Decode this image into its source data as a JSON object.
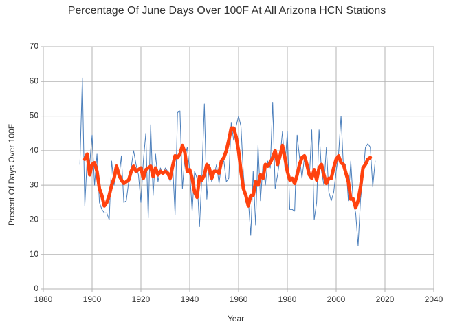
{
  "chart_data": {
    "type": "line",
    "title": "Percentage Of June Days Over 100F At All Arizona HCN Stations",
    "xlabel": "Year",
    "ylabel": "Precent Of Days Over 100F",
    "x": [
      1895,
      1896,
      1897,
      1898,
      1899,
      1900,
      1901,
      1902,
      1903,
      1904,
      1905,
      1906,
      1907,
      1908,
      1909,
      1910,
      1911,
      1912,
      1913,
      1914,
      1915,
      1916,
      1917,
      1918,
      1919,
      1920,
      1921,
      1922,
      1923,
      1924,
      1925,
      1926,
      1927,
      1928,
      1929,
      1930,
      1931,
      1932,
      1933,
      1934,
      1935,
      1936,
      1937,
      1938,
      1939,
      1940,
      1941,
      1942,
      1943,
      1944,
      1945,
      1946,
      1947,
      1948,
      1949,
      1950,
      1951,
      1952,
      1953,
      1954,
      1955,
      1956,
      1957,
      1958,
      1959,
      1960,
      1961,
      1962,
      1963,
      1964,
      1965,
      1966,
      1967,
      1968,
      1969,
      1970,
      1971,
      1972,
      1973,
      1974,
      1975,
      1976,
      1977,
      1978,
      1979,
      1980,
      1981,
      1982,
      1983,
      1984,
      1985,
      1986,
      1987,
      1988,
      1989,
      1990,
      1991,
      1992,
      1993,
      1994,
      1995,
      1996,
      1997,
      1998,
      1999,
      2000,
      2001,
      2002,
      2003,
      2004,
      2005,
      2006,
      2007,
      2008,
      2009,
      2010,
      2011,
      2012,
      2013,
      2014,
      2015,
      2016
    ],
    "series": [
      {
        "color": "#4a7ebb",
        "width": 1,
        "values": [
          36,
          61,
          24,
          38,
          36,
          44.5,
          30,
          39,
          25,
          23,
          22,
          22,
          20,
          37,
          30,
          36,
          32,
          38.5,
          25,
          25.5,
          31,
          35,
          40,
          36,
          33,
          25,
          37,
          45,
          20.5,
          47.5,
          27,
          39,
          31,
          35,
          33,
          35,
          34,
          31,
          36,
          21.5,
          51,
          51.5,
          29,
          38,
          41,
          34,
          22.5,
          34,
          32,
          18,
          33,
          53.5,
          26,
          36,
          31,
          33,
          36,
          30.5,
          36,
          37,
          31,
          32,
          48,
          43,
          47,
          50,
          47,
          33,
          25,
          26,
          15.5,
          34,
          18.5,
          41.5,
          25.5,
          36,
          30,
          37,
          35,
          54,
          29,
          33,
          38,
          45.5,
          35,
          45.5,
          23,
          23,
          22.5,
          44.5,
          38,
          32,
          38,
          36,
          32,
          46,
          20,
          25,
          46,
          34,
          30,
          41,
          28,
          25.5,
          28,
          34,
          39,
          50,
          35,
          36,
          25.5,
          37,
          25,
          22,
          12.5,
          26,
          32,
          41,
          42,
          41,
          29.5,
          37
        ]
      },
      {
        "color": "#ff420e",
        "width": 5,
        "values": [
          null,
          null,
          37.5,
          39,
          33,
          36,
          36.5,
          34,
          29,
          27,
          24,
          25,
          27,
          30,
          32,
          35.5,
          33,
          31.5,
          30.5,
          31,
          31.5,
          34,
          35.5,
          34,
          34.5,
          35,
          32,
          34.5,
          35,
          35.5,
          32.5,
          35,
          33,
          34,
          33.5,
          34,
          33.5,
          32,
          35.5,
          38.5,
          38,
          39,
          41.5,
          39.5,
          34,
          34.5,
          32,
          28,
          26.5,
          32.5,
          31.5,
          33,
          36,
          35,
          32,
          34,
          34,
          33.5,
          37,
          38,
          40,
          43,
          46.5,
          46.5,
          44,
          40,
          34,
          29,
          27,
          24,
          27,
          27,
          31,
          30,
          33,
          32,
          36,
          35.5,
          36.5,
          38,
          40,
          36,
          38.5,
          41.5,
          38,
          34,
          31.5,
          32,
          30.5,
          33,
          36,
          38,
          38.5,
          36,
          33,
          32,
          34.5,
          31.5,
          35,
          36,
          33,
          30.5,
          32,
          32,
          35,
          37.5,
          38.5,
          36.5,
          36,
          33.5,
          31,
          26,
          26,
          23.5,
          25.5,
          29.5,
          35,
          36,
          37.5,
          38,
          null,
          null
        ]
      }
    ],
    "xlim": [
      1880,
      2040
    ],
    "xticks": [
      1880,
      1900,
      1920,
      1940,
      1960,
      1980,
      2000,
      2020,
      2040
    ],
    "ylim": [
      0,
      70
    ],
    "yticks": [
      0,
      10,
      20,
      30,
      40,
      50,
      60,
      70
    ],
    "grid": true
  }
}
